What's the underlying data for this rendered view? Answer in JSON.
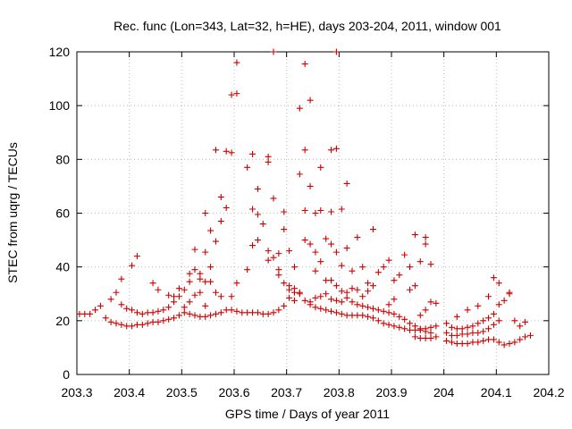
{
  "chart_data": {
    "type": "scatter",
    "title": "Rec. func (Lon=343, Lat=32, h=HE), days 203-204, 2011, window 001",
    "xlabel": "GPS time / Days of year 2011",
    "ylabel": "STEC from uqrg / TECUs",
    "xlim": [
      203.3,
      204.2
    ],
    "ylim": [
      0,
      120
    ],
    "xticks": [
      203.3,
      203.4,
      203.5,
      203.6,
      203.7,
      203.8,
      203.9,
      204,
      204.1,
      204.2
    ],
    "xtick_labels": [
      "203.3",
      "203.4",
      "203.5",
      "203.6",
      "203.7",
      "203.8",
      "203.9",
      "204",
      "204.1",
      "204.2"
    ],
    "yticks": [
      0,
      20,
      40,
      60,
      80,
      100,
      120
    ],
    "ytick_labels": [
      "0",
      "20",
      "40",
      "60",
      "80",
      "100",
      "120"
    ],
    "grid": true,
    "marker": "+",
    "color": "#cc0000",
    "series": [
      {
        "name": "STEC",
        "points": [
          [
            203.305,
            22.5
          ],
          [
            203.315,
            22.5
          ],
          [
            203.325,
            22.5
          ],
          [
            203.335,
            24
          ],
          [
            203.345,
            25.5
          ],
          [
            203.355,
            21
          ],
          [
            203.365,
            19.5
          ],
          [
            203.375,
            19
          ],
          [
            203.385,
            18.5
          ],
          [
            203.395,
            18
          ],
          [
            203.405,
            18
          ],
          [
            203.415,
            18.5
          ],
          [
            203.425,
            18.5
          ],
          [
            203.435,
            19
          ],
          [
            203.445,
            19.5
          ],
          [
            203.455,
            19.5
          ],
          [
            203.465,
            20
          ],
          [
            203.475,
            20.5
          ],
          [
            203.485,
            21
          ],
          [
            203.365,
            28
          ],
          [
            203.375,
            30.5
          ],
          [
            203.385,
            26
          ],
          [
            203.395,
            24.5
          ],
          [
            203.405,
            24
          ],
          [
            203.415,
            23
          ],
          [
            203.425,
            22.5
          ],
          [
            203.435,
            23
          ],
          [
            203.445,
            23
          ],
          [
            203.455,
            23.5
          ],
          [
            203.465,
            24
          ],
          [
            203.475,
            25
          ],
          [
            203.485,
            27
          ],
          [
            203.495,
            29
          ],
          [
            203.385,
            35.5
          ],
          [
            203.405,
            40.5
          ],
          [
            203.415,
            44
          ],
          [
            203.445,
            34
          ],
          [
            203.455,
            31.5
          ],
          [
            203.475,
            29.5
          ],
          [
            203.485,
            29
          ],
          [
            203.495,
            22
          ],
          [
            203.505,
            23
          ],
          [
            203.515,
            22.5
          ],
          [
            203.525,
            22
          ],
          [
            203.535,
            21.5
          ],
          [
            203.545,
            21.5
          ],
          [
            203.555,
            22
          ],
          [
            203.565,
            22.5
          ],
          [
            203.575,
            23
          ],
          [
            203.585,
            24
          ],
          [
            203.595,
            24
          ],
          [
            203.605,
            23.5
          ],
          [
            203.615,
            23
          ],
          [
            203.625,
            23
          ],
          [
            203.635,
            23
          ],
          [
            203.645,
            23
          ],
          [
            203.655,
            22.5
          ],
          [
            203.665,
            22.5
          ],
          [
            203.675,
            23
          ],
          [
            203.685,
            24
          ],
          [
            203.695,
            25.5
          ],
          [
            203.505,
            25
          ],
          [
            203.515,
            27
          ],
          [
            203.525,
            29.5
          ],
          [
            203.535,
            30.5
          ],
          [
            203.545,
            25.5
          ],
          [
            203.565,
            30.5
          ],
          [
            203.575,
            29
          ],
          [
            203.595,
            29
          ],
          [
            203.605,
            34
          ],
          [
            203.625,
            39
          ],
          [
            203.495,
            32
          ],
          [
            203.505,
            31.5
          ],
          [
            203.515,
            34.5
          ],
          [
            203.515,
            37.5
          ],
          [
            203.525,
            39
          ],
          [
            203.535,
            35.5
          ],
          [
            203.535,
            37.5
          ],
          [
            203.545,
            34.5
          ],
          [
            203.555,
            34.5
          ],
          [
            203.555,
            40
          ],
          [
            203.525,
            46.5
          ],
          [
            203.545,
            45.5
          ],
          [
            203.565,
            49.5
          ],
          [
            203.555,
            53.5
          ],
          [
            203.545,
            60
          ],
          [
            203.575,
            57
          ],
          [
            203.575,
            66
          ],
          [
            203.585,
            62
          ],
          [
            203.565,
            83.5
          ],
          [
            203.585,
            83
          ],
          [
            203.595,
            82.5
          ],
          [
            203.595,
            104
          ],
          [
            203.605,
            104.5
          ],
          [
            203.605,
            116
          ],
          [
            203.625,
            77
          ],
          [
            203.635,
            82
          ],
          [
            203.635,
            61.5
          ],
          [
            203.645,
            59.5
          ],
          [
            203.645,
            69
          ],
          [
            203.635,
            48
          ],
          [
            203.645,
            50
          ],
          [
            203.655,
            56
          ],
          [
            203.665,
            46
          ],
          [
            203.665,
            42.5
          ],
          [
            203.665,
            81
          ],
          [
            203.665,
            79
          ],
          [
            203.675,
            43.5
          ],
          [
            203.685,
            45
          ],
          [
            203.675,
            65.5
          ],
          [
            203.675,
            120
          ],
          [
            203.685,
            37
          ],
          [
            203.685,
            39
          ],
          [
            203.695,
            54
          ],
          [
            203.695,
            60.5
          ],
          [
            203.695,
            34
          ],
          [
            203.705,
            33
          ],
          [
            203.705,
            46
          ],
          [
            203.705,
            31.5
          ],
          [
            203.715,
            30.5
          ],
          [
            203.715,
            32
          ],
          [
            203.715,
            40
          ],
          [
            203.725,
            30
          ],
          [
            203.725,
            74.5
          ],
          [
            203.725,
            99
          ],
          [
            203.735,
            83.5
          ],
          [
            203.735,
            115.5
          ],
          [
            203.735,
            61
          ],
          [
            203.735,
            50
          ],
          [
            203.745,
            102
          ],
          [
            203.745,
            70
          ],
          [
            203.745,
            48.5
          ],
          [
            203.755,
            45.5
          ],
          [
            203.755,
            60
          ],
          [
            203.755,
            38.5
          ],
          [
            203.765,
            61
          ],
          [
            203.765,
            77
          ],
          [
            203.765,
            42
          ],
          [
            203.775,
            50.5
          ],
          [
            203.775,
            35
          ],
          [
            203.785,
            83.5
          ],
          [
            203.785,
            60.5
          ],
          [
            203.785,
            48.5
          ],
          [
            203.795,
            84
          ],
          [
            203.795,
            120
          ],
          [
            203.795,
            45.5
          ],
          [
            203.805,
            40.5
          ],
          [
            203.805,
            61.5
          ],
          [
            203.815,
            47
          ],
          [
            203.815,
            71
          ],
          [
            203.825,
            38.5
          ],
          [
            203.835,
            51
          ],
          [
            203.845,
            40
          ],
          [
            203.855,
            34
          ],
          [
            203.865,
            54
          ],
          [
            203.705,
            28.5
          ],
          [
            203.715,
            27.5
          ],
          [
            203.725,
            30.5
          ],
          [
            203.735,
            27.5
          ],
          [
            203.745,
            27
          ],
          [
            203.755,
            28.5
          ],
          [
            203.765,
            29
          ],
          [
            203.775,
            30
          ],
          [
            203.785,
            28
          ],
          [
            203.795,
            27.5
          ],
          [
            203.805,
            27
          ],
          [
            203.815,
            30.5
          ],
          [
            203.825,
            32
          ],
          [
            203.835,
            31.5
          ],
          [
            203.845,
            29
          ],
          [
            203.855,
            31
          ],
          [
            203.865,
            33
          ],
          [
            203.875,
            38
          ],
          [
            203.885,
            40
          ],
          [
            203.895,
            42.5
          ],
          [
            203.745,
            26
          ],
          [
            203.755,
            25
          ],
          [
            203.765,
            24.5
          ],
          [
            203.775,
            24
          ],
          [
            203.785,
            23.5
          ],
          [
            203.795,
            23
          ],
          [
            203.805,
            22.5
          ],
          [
            203.815,
            22
          ],
          [
            203.825,
            22
          ],
          [
            203.835,
            22
          ],
          [
            203.845,
            22
          ],
          [
            203.855,
            21.5
          ],
          [
            203.865,
            21
          ],
          [
            203.875,
            20
          ],
          [
            203.885,
            19
          ],
          [
            203.895,
            18.5
          ],
          [
            203.905,
            18
          ],
          [
            203.915,
            17.5
          ],
          [
            203.925,
            17
          ],
          [
            203.935,
            16.5
          ],
          [
            203.945,
            16.5
          ],
          [
            203.955,
            16.5
          ],
          [
            203.965,
            17
          ],
          [
            203.975,
            17.5
          ],
          [
            203.985,
            18
          ],
          [
            203.785,
            35
          ],
          [
            203.795,
            33
          ],
          [
            203.805,
            31
          ],
          [
            203.815,
            28.5
          ],
          [
            203.825,
            27
          ],
          [
            203.835,
            26
          ],
          [
            203.845,
            25.5
          ],
          [
            203.855,
            25
          ],
          [
            203.865,
            24.5
          ],
          [
            203.875,
            24
          ],
          [
            203.885,
            23.5
          ],
          [
            203.895,
            23
          ],
          [
            203.905,
            22.5
          ],
          [
            203.915,
            21.5
          ],
          [
            203.925,
            20.5
          ],
          [
            203.935,
            19
          ],
          [
            203.945,
            18
          ],
          [
            203.955,
            17
          ],
          [
            203.965,
            16
          ],
          [
            203.975,
            15.5
          ],
          [
            203.895,
            26
          ],
          [
            203.905,
            28
          ],
          [
            203.905,
            35
          ],
          [
            203.915,
            37
          ],
          [
            203.925,
            44.5
          ],
          [
            203.935,
            40
          ],
          [
            203.935,
            31.5
          ],
          [
            203.945,
            52
          ],
          [
            203.945,
            33
          ],
          [
            203.955,
            42
          ],
          [
            203.965,
            48.5
          ],
          [
            203.965,
            51
          ],
          [
            203.975,
            41
          ],
          [
            203.955,
            22
          ],
          [
            203.965,
            24
          ],
          [
            203.975,
            27
          ],
          [
            203.985,
            26.5
          ],
          [
            203.945,
            14
          ],
          [
            203.955,
            13.5
          ],
          [
            203.965,
            13.5
          ],
          [
            203.975,
            13.5
          ],
          [
            203.985,
            14
          ],
          [
            204.005,
            19
          ],
          [
            204.015,
            17.5
          ],
          [
            204.025,
            17
          ],
          [
            204.035,
            17
          ],
          [
            204.045,
            17.5
          ],
          [
            204.055,
            18
          ],
          [
            204.065,
            19
          ],
          [
            204.075,
            20
          ],
          [
            204.085,
            21
          ],
          [
            204.095,
            22.5
          ],
          [
            204.105,
            26
          ],
          [
            204.115,
            27.5
          ],
          [
            204.125,
            30
          ],
          [
            204.135,
            20
          ],
          [
            204.145,
            18
          ],
          [
            204.155,
            19.5
          ],
          [
            204.005,
            15.5
          ],
          [
            204.015,
            14.5
          ],
          [
            204.025,
            14.5
          ],
          [
            204.035,
            15
          ],
          [
            204.045,
            15
          ],
          [
            204.055,
            15.5
          ],
          [
            204.065,
            15.5
          ],
          [
            204.075,
            16
          ],
          [
            204.085,
            17
          ],
          [
            204.095,
            18.5
          ],
          [
            204.105,
            20
          ],
          [
            204.005,
            12.5
          ],
          [
            204.015,
            12
          ],
          [
            204.025,
            11.5
          ],
          [
            204.035,
            11.5
          ],
          [
            204.045,
            11.5
          ],
          [
            204.055,
            12
          ],
          [
            204.065,
            12
          ],
          [
            204.075,
            12.5
          ],
          [
            204.085,
            13
          ],
          [
            204.095,
            13
          ],
          [
            204.105,
            12
          ],
          [
            204.115,
            11
          ],
          [
            204.125,
            11.5
          ],
          [
            204.135,
            12
          ],
          [
            204.145,
            13
          ],
          [
            204.155,
            14
          ],
          [
            204.165,
            14.5
          ],
          [
            204.025,
            21.5
          ],
          [
            204.045,
            24
          ],
          [
            204.065,
            25.5
          ],
          [
            204.085,
            29
          ],
          [
            204.095,
            36
          ],
          [
            204.105,
            34
          ],
          [
            204.125,
            30.5
          ]
        ]
      }
    ]
  }
}
